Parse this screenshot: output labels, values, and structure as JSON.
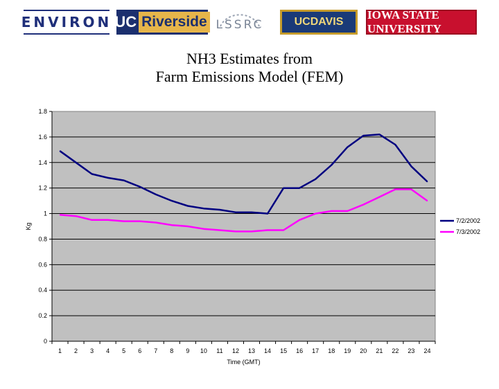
{
  "logos": {
    "environ": "ENVIRON",
    "uc": "UC",
    "riverside": "Riverside",
    "lssrc": "LSSRC",
    "ucdavis": "UCDAVIS",
    "iowa": "IOWA STATE UNIVERSITY"
  },
  "chart_data": {
    "type": "line",
    "title": "NH3 Estimates from Farm Emissions Model (FEM)",
    "title_lines": [
      "NH3 Estimates from",
      "Farm Emissions Model (FEM)"
    ],
    "xlabel": "Time (GMT)",
    "ylabel": "Kg",
    "categories": [
      "1",
      "2",
      "3",
      "4",
      "5",
      "6",
      "7",
      "8",
      "9",
      "10",
      "11",
      "12",
      "13",
      "14",
      "15",
      "16",
      "17",
      "18",
      "19",
      "20",
      "21",
      "22",
      "23",
      "24"
    ],
    "ylim": [
      0,
      1.8
    ],
    "yticks": [
      "0",
      "0.2",
      "0.4",
      "0.6",
      "0.8",
      "1",
      "1.2",
      "1.4",
      "1.6",
      "1.8"
    ],
    "grid": true,
    "legend_position": "right",
    "plot_background": "#c0c0c0",
    "series": [
      {
        "name": "7/2/2002",
        "color": "#000080",
        "values": [
          1.49,
          1.4,
          1.31,
          1.28,
          1.26,
          1.21,
          1.15,
          1.1,
          1.06,
          1.04,
          1.03,
          1.01,
          1.01,
          1.0,
          1.2,
          1.2,
          1.27,
          1.38,
          1.52,
          1.61,
          1.62,
          1.54,
          1.37,
          1.25
        ]
      },
      {
        "name": "7/3/2002",
        "color": "#ff00ff",
        "values": [
          0.99,
          0.98,
          0.95,
          0.95,
          0.94,
          0.94,
          0.93,
          0.91,
          0.9,
          0.88,
          0.87,
          0.86,
          0.86,
          0.87,
          0.87,
          0.95,
          1.0,
          1.02,
          1.02,
          1.07,
          1.13,
          1.19,
          1.19,
          1.1
        ]
      }
    ]
  }
}
